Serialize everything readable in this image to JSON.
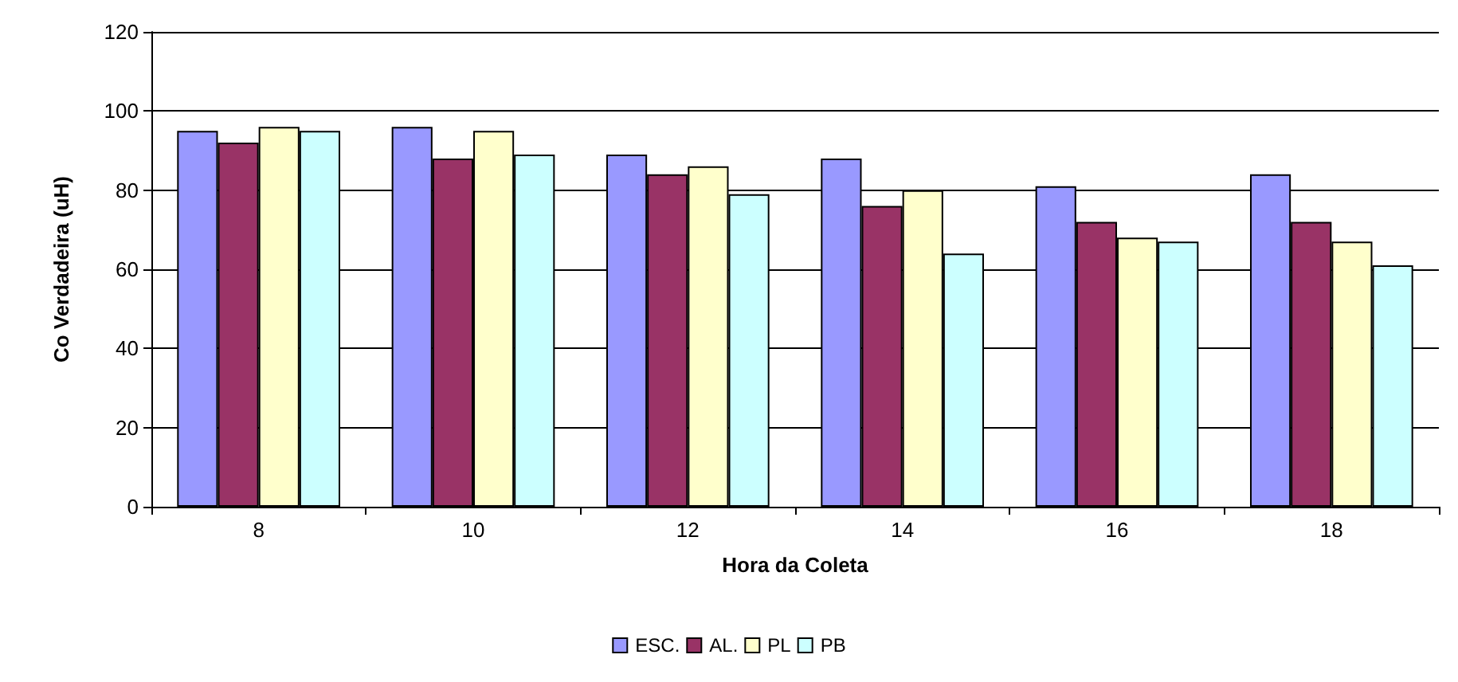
{
  "chart_data": {
    "type": "bar",
    "xlabel": "Hora da Coleta",
    "ylabel": "Co Verdadeira (uH)",
    "categories": [
      "8",
      "10",
      "12",
      "14",
      "16",
      "18"
    ],
    "series": [
      {
        "name": "ESC.",
        "color": "#9999ff",
        "values": [
          95,
          96,
          89,
          88,
          81,
          84
        ]
      },
      {
        "name": "AL.",
        "color": "#993366",
        "values": [
          92,
          88,
          84,
          76,
          72,
          72
        ]
      },
      {
        "name": "PL",
        "color": "#ffffcc",
        "values": [
          96,
          95,
          86,
          80,
          68,
          67
        ]
      },
      {
        "name": "PB",
        "color": "#ccffff",
        "values": [
          95,
          89,
          79,
          64,
          67,
          61
        ]
      }
    ],
    "ylim": [
      0,
      120
    ],
    "yticks": [
      0,
      20,
      40,
      60,
      80,
      100,
      120
    ],
    "grid": "y",
    "legend": "bottom"
  }
}
